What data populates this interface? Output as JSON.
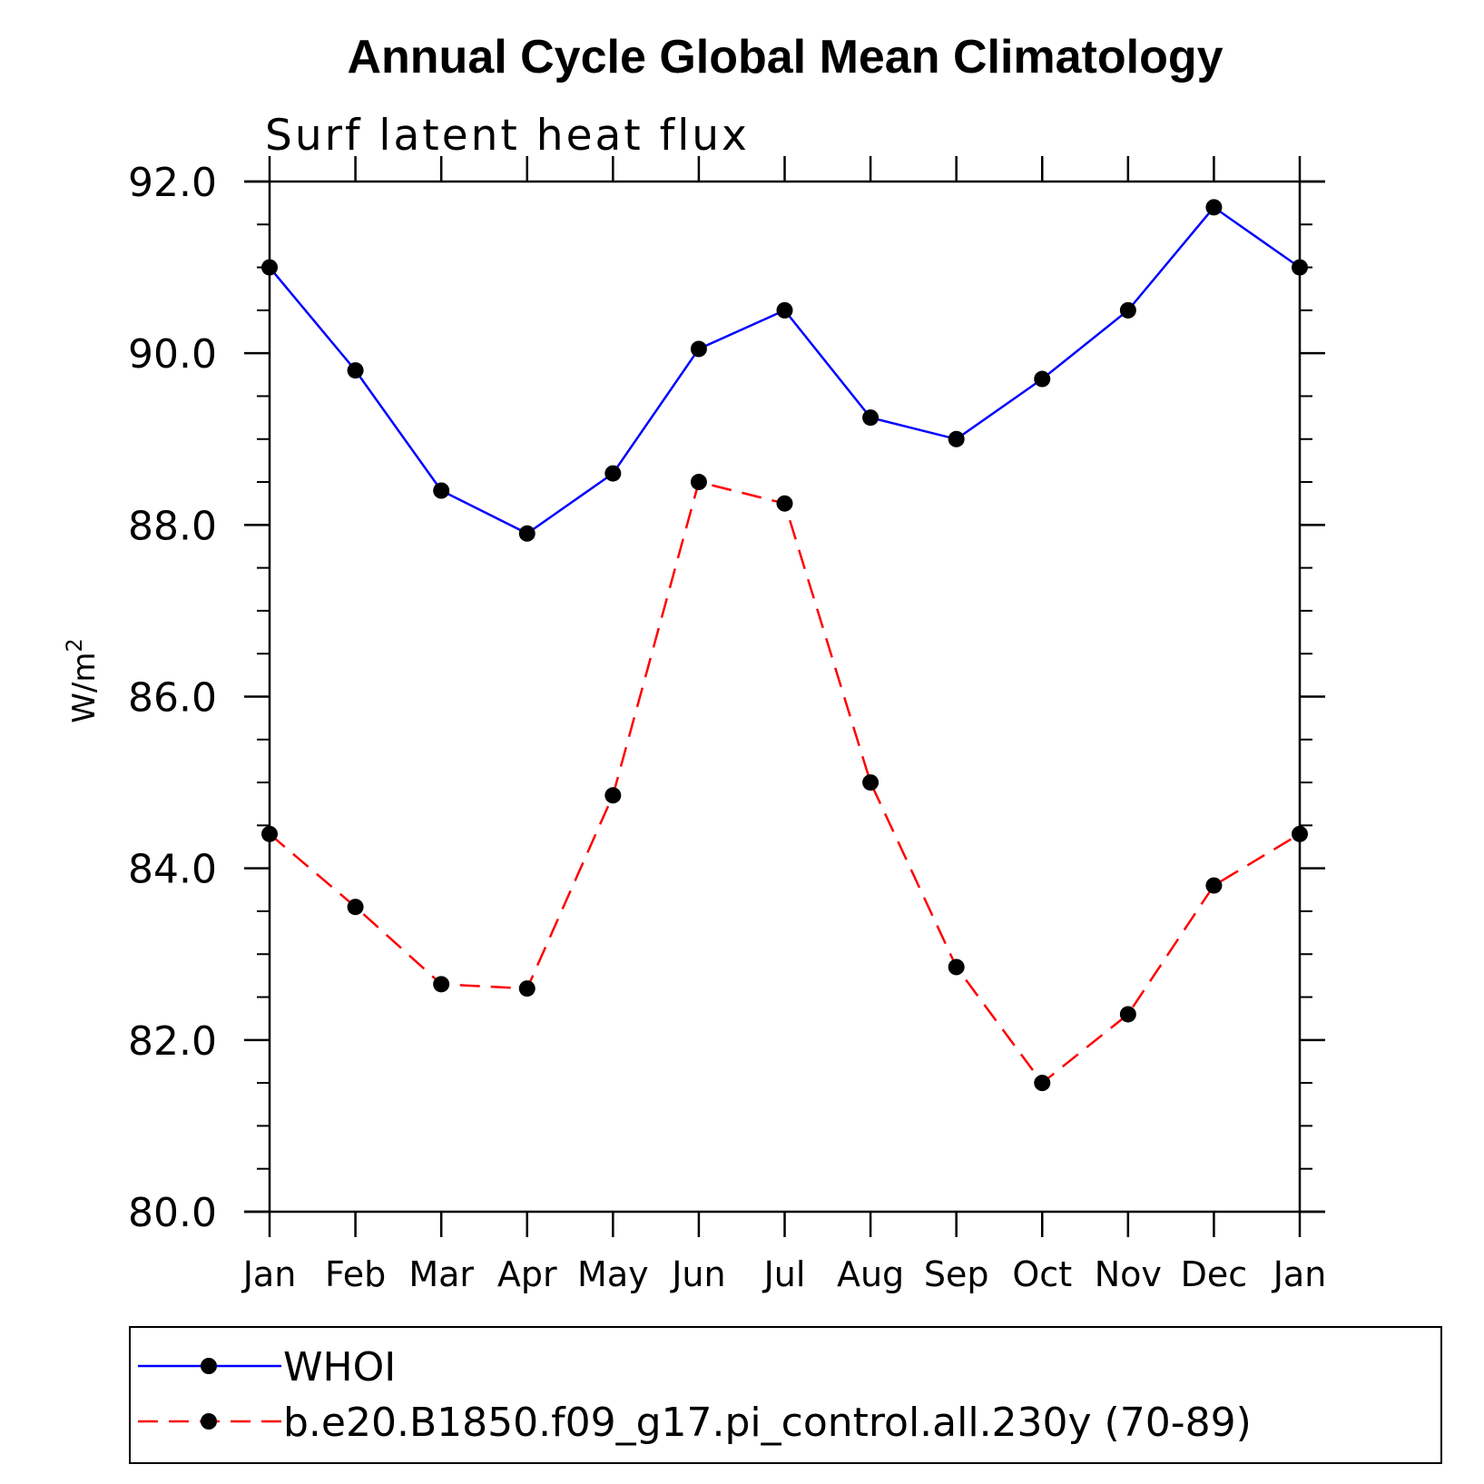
{
  "chart_data": {
    "type": "line",
    "title": "Annual Cycle Global Mean Climatology",
    "subtitle": "Surf latent heat flux",
    "ylabel": "W/m",
    "ylabel_superscript": "2",
    "xlabel": "",
    "categories": [
      "Jan",
      "Feb",
      "Mar",
      "Apr",
      "May",
      "Jun",
      "Jul",
      "Aug",
      "Sep",
      "Oct",
      "Nov",
      "Dec",
      "Jan"
    ],
    "ylim": [
      80.0,
      92.0
    ],
    "yticks": [
      "80.0",
      "82.0",
      "84.0",
      "86.0",
      "88.0",
      "90.0",
      "92.0"
    ],
    "grid": false,
    "legend_position": "bottom",
    "series": [
      {
        "name": "WHOI",
        "color": "#0000ff",
        "line_style": "solid",
        "marker": "filled-circle",
        "values": [
          91.0,
          89.8,
          88.4,
          87.9,
          88.6,
          90.05,
          90.5,
          89.25,
          89.0,
          89.7,
          90.5,
          91.7,
          91.0
        ]
      },
      {
        "name": "b.e20.B1850.f09_g17.pi_control.all.230y (70-89)",
        "color": "#ff0000",
        "line_style": "dashed",
        "marker": "filled-circle",
        "values": [
          84.4,
          83.55,
          82.65,
          82.6,
          84.85,
          88.5,
          88.25,
          85.0,
          82.85,
          81.5,
          82.3,
          83.8,
          84.4
        ]
      }
    ]
  }
}
